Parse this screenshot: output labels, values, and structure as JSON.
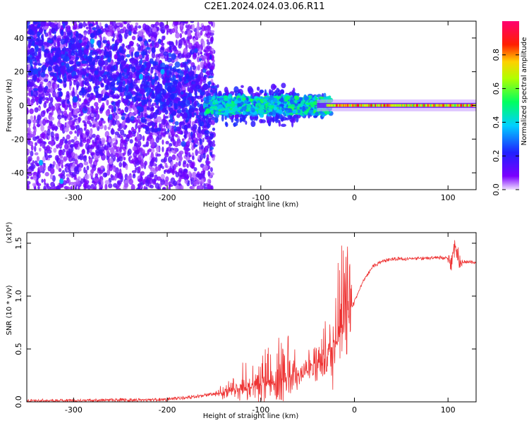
{
  "title": "C2E1.2024.024.03.06.R11",
  "chart_data": [
    {
      "type": "heatmap",
      "xlabel": "Height of straight line (km)",
      "ylabel": "Frequency (Hz)",
      "xlim": [
        -350,
        130
      ],
      "ylim": [
        -50,
        50
      ],
      "xticks": [
        -300,
        -200,
        -100,
        0,
        100
      ],
      "yticks": [
        -40,
        -20,
        0,
        20,
        40
      ],
      "colorbar": {
        "label": "Normalized spectral amplitude",
        "range": [
          0,
          1
        ],
        "ticks": [
          "0.0",
          "0.2",
          "0.4",
          "0.6",
          "0.8"
        ],
        "colormap": "rainbow (violet-blue-cyan-green-yellow-red-magenta)"
      },
      "features": {
        "carrier_line_frequency_hz": 0,
        "strong_carrier_from_km": -30,
        "scatter_region_below_km": -150,
        "signal_broadening_km": [
          -220,
          -30
        ]
      }
    },
    {
      "type": "line",
      "xlabel": "Height of straight line (km)",
      "ylabel": "SNR (10 * v/v)",
      "y_multiplier": "(x10⁴)",
      "xlim": [
        -350,
        130
      ],
      "ylim": [
        0,
        1.6
      ],
      "xticks": [
        -300,
        -200,
        -100,
        0,
        100
      ],
      "yticks": [
        "0.0",
        "0.5",
        "1.0",
        "1.5"
      ],
      "color": "#ee3333",
      "series": [
        {
          "x": [
            -350,
            -300,
            -250,
            -200,
            -180,
            -160,
            -140,
            -120,
            -110,
            -100,
            -90,
            -80,
            -70,
            -60,
            -50,
            -40,
            -30,
            -20,
            -15,
            -10,
            -5,
            0,
            10,
            20,
            30,
            40,
            60,
            80,
            100,
            105,
            108,
            112,
            120,
            130
          ],
          "y": [
            0.01,
            0.01,
            0.015,
            0.02,
            0.04,
            0.06,
            0.08,
            0.12,
            0.15,
            0.17,
            0.19,
            0.2,
            0.22,
            0.25,
            0.3,
            0.35,
            0.4,
            0.55,
            0.7,
            0.8,
            0.85,
            0.95,
            1.15,
            1.28,
            1.33,
            1.35,
            1.35,
            1.36,
            1.36,
            1.3,
            1.45,
            1.33,
            1.32,
            1.32
          ]
        }
      ],
      "noise_envelope": {
        "x": [
          -200,
          -150,
          -120,
          -100,
          -80,
          -60,
          -40,
          -25,
          -15,
          -10,
          -5,
          0
        ],
        "y_max": [
          0.03,
          0.08,
          0.3,
          0.45,
          0.6,
          0.4,
          0.55,
          0.9,
          1.55,
          1.5,
          1.35,
          1.1
        ]
      }
    }
  ]
}
